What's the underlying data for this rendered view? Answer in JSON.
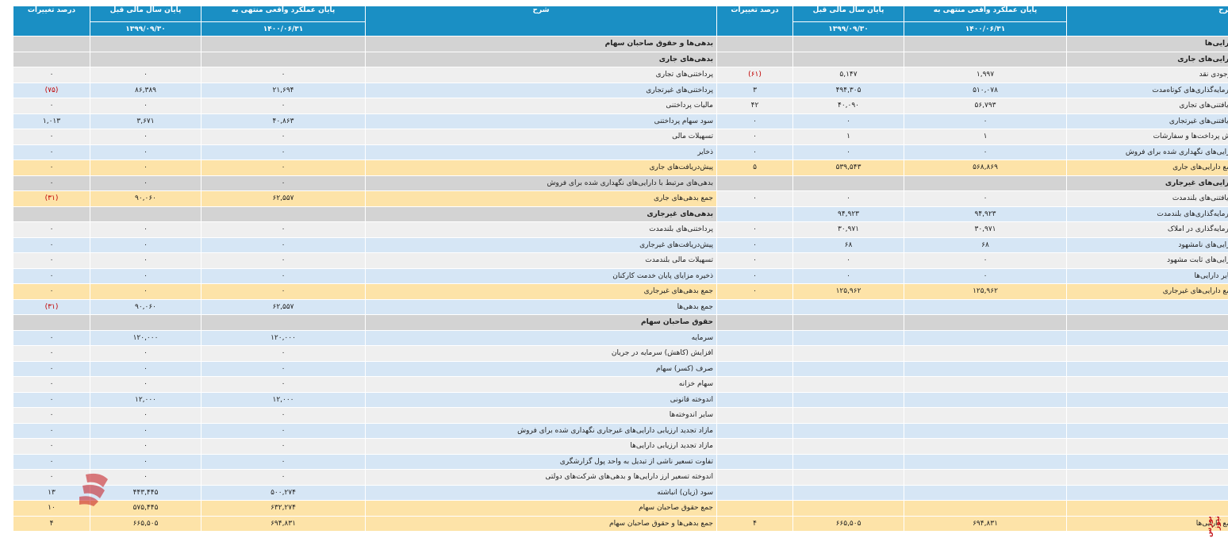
{
  "header": {
    "left": {
      "desc": "شرح",
      "actual": "پایان عملکرد واقعی منتهی به",
      "prev": "پایان سال مالی قبل",
      "change": "درصد تغییرات",
      "actual_date": "۱۴۰۰/۰۶/۳۱",
      "prev_date": "۱۳۹۹/۰۹/۳۰"
    },
    "right": {
      "desc": "شرح",
      "actual": "پایان عملکرد واقعی منتهی به",
      "prev": "پایان سال مالی قبل",
      "change": "درصد تغییرات",
      "actual_date": "۱۴۰۰/۰۶/۳۱",
      "prev_date": "۱۳۹۹/۰۹/۳۰"
    }
  },
  "rows": [
    {
      "type": "gray",
      "a": {
        "desc": "دارایی‌ها",
        "bold": true
      },
      "l": {
        "desc": "بدهی‌ها و حقوق صاحبان سهام",
        "bold": true
      }
    },
    {
      "type": "gray",
      "a": {
        "desc": "دارایی‌های جاری",
        "bold": true
      },
      "l": {
        "desc": "بدهی‌های جاری",
        "bold": true
      }
    },
    {
      "type": "light",
      "a": {
        "desc": "موجودی نقد",
        "actual": "۱,۹۹۷",
        "prev": "۵,۱۴۷",
        "change": "(۶۱)",
        "red": true
      },
      "l": {
        "desc": "پرداختنی‌های تجاری",
        "actual": "۰",
        "prev": "۰",
        "change": "۰"
      }
    },
    {
      "type": "blue",
      "a": {
        "desc": "سرمایه‌گذاری‌های کوتاه‌مدت",
        "actual": "۵۱۰,۰۷۸",
        "prev": "۴۹۴,۳۰۵",
        "change": "۳"
      },
      "l": {
        "desc": "پرداختنی‌های غیرتجاری",
        "actual": "۲۱,۶۹۴",
        "prev": "۸۶,۳۸۹",
        "change": "(۷۵)",
        "red": true
      }
    },
    {
      "type": "light",
      "a": {
        "desc": "دریافتنی‌های تجاری",
        "actual": "۵۶,۷۹۳",
        "prev": "۴۰,۰۹۰",
        "change": "۴۲"
      },
      "l": {
        "desc": "مالیات پرداختنی",
        "actual": "۰",
        "prev": "۰",
        "change": "۰"
      }
    },
    {
      "type": "blue",
      "a": {
        "desc": "دریافتنی‌های غیرتجاری",
        "actual": "۰",
        "prev": "۰",
        "change": "۰"
      },
      "l": {
        "desc": "سود سهام پرداختنی",
        "actual": "۴۰,۸۶۳",
        "prev": "۳,۶۷۱",
        "change": "۱,۰۱۳"
      }
    },
    {
      "type": "light",
      "a": {
        "desc": "پیش پرداخت‌ها و سفارشات",
        "actual": "۱",
        "prev": "۱",
        "change": "۰"
      },
      "l": {
        "desc": "تسهیلات مالی",
        "actual": "۰",
        "prev": "۰",
        "change": "۰"
      }
    },
    {
      "type": "blue",
      "a": {
        "desc": "دارایی‌های نگهداری شده برای فروش",
        "actual": "۰",
        "prev": "۰",
        "change": "۰"
      },
      "l": {
        "desc": "ذخایر",
        "actual": "۰",
        "prev": "۰",
        "change": "۰"
      }
    },
    {
      "type": "total",
      "a": {
        "desc": "جمع دارایی‌های جاری",
        "actual": "۵۶۸,۸۶۹",
        "prev": "۵۳۹,۵۴۳",
        "change": "۵"
      },
      "l": {
        "desc": "پیش‌دریافت‌های جاری",
        "actual": "۰",
        "prev": "۰",
        "change": "۰"
      }
    },
    {
      "type": "gray",
      "a": {
        "desc": "دارایی‌های غیرجاری",
        "bold": true
      },
      "l": {
        "desc": "بدهی‌های مرتبط با دارایی‌های نگهداری شده برای فروش",
        "actual": "۰",
        "prev": "۰",
        "change": "۰"
      }
    },
    {
      "type": "light",
      "a": {
        "desc": "دریافتنی‌های بلندمدت",
        "actual": "۰",
        "prev": "۰",
        "change": "۰"
      },
      "l": {
        "desc": "جمع بدهی‌های جاری",
        "actual": "۶۲,۵۵۷",
        "prev": "۹۰,۰۶۰",
        "change": "(۳۱)",
        "red": true,
        "total": true
      }
    },
    {
      "type": "blue",
      "a": {
        "desc": "سرمایه‌گذاری‌های بلندمدت",
        "actual": "۹۴,۹۲۳",
        "prev": "۹۴,۹۲۳",
        "change": ""
      },
      "l": {
        "desc": "بدهی‌های غیرجاری",
        "bold": true,
        "gray": true
      }
    },
    {
      "type": "light",
      "a": {
        "desc": "سرمایه‌گذاری در املاک",
        "actual": "۳۰,۹۷۱",
        "prev": "۳۰,۹۷۱",
        "change": "۰"
      },
      "l": {
        "desc": "پرداختنی‌های بلندمدت",
        "actual": "۰",
        "prev": "۰",
        "change": "۰"
      }
    },
    {
      "type": "blue",
      "a": {
        "desc": "دارایی‌های نامشهود",
        "actual": "۶۸",
        "prev": "۶۸",
        "change": "۰"
      },
      "l": {
        "desc": "پیش‌دریافت‌های غیرجاری",
        "actual": "۰",
        "prev": "۰",
        "change": "۰"
      }
    },
    {
      "type": "light",
      "a": {
        "desc": "دارایی‌های ثابت مشهود",
        "actual": "۰",
        "prev": "۰",
        "change": "۰"
      },
      "l": {
        "desc": "تسهیلات مالی بلندمدت",
        "actual": "۰",
        "prev": "۰",
        "change": "۰"
      }
    },
    {
      "type": "blue",
      "a": {
        "desc": "سایر دارایی‌ها",
        "actual": "۰",
        "prev": "۰",
        "change": "۰"
      },
      "l": {
        "desc": "ذخیره مزایای پایان خدمت کارکنان",
        "actual": "۰",
        "prev": "۰",
        "change": "۰"
      }
    },
    {
      "type": "total",
      "a": {
        "desc": "جمع دارایی‌های غیرجاری",
        "actual": "۱۲۵,۹۶۲",
        "prev": "۱۲۵,۹۶۲",
        "change": "۰"
      },
      "l": {
        "desc": "جمع بدهی‌های غیرجاری",
        "actual": "۰",
        "prev": "۰",
        "change": "۰"
      }
    },
    {
      "type": "blue",
      "a": {
        "desc": ""
      },
      "l": {
        "desc": "جمع بدهی‌ها",
        "actual": "۶۲,۵۵۷",
        "prev": "۹۰,۰۶۰",
        "change": "(۳۱)",
        "red": true
      }
    },
    {
      "type": "gray",
      "a": {
        "desc": ""
      },
      "l": {
        "desc": "حقوق صاحبان سهام",
        "bold": true
      }
    },
    {
      "type": "blue",
      "a": {
        "desc": ""
      },
      "l": {
        "desc": "سرمایه",
        "actual": "۱۲۰,۰۰۰",
        "prev": "۱۲۰,۰۰۰",
        "change": "۰"
      }
    },
    {
      "type": "light",
      "a": {
        "desc": ""
      },
      "l": {
        "desc": "افزایش (کاهش) سرمایه در جریان",
        "actual": "۰",
        "prev": "۰",
        "change": "۰"
      }
    },
    {
      "type": "blue",
      "a": {
        "desc": ""
      },
      "l": {
        "desc": "صرف (کسر) سهام",
        "actual": "۰",
        "prev": "۰",
        "change": "۰"
      }
    },
    {
      "type": "light",
      "a": {
        "desc": ""
      },
      "l": {
        "desc": "سهام خزانه",
        "actual": "۰",
        "prev": "۰",
        "change": "۰"
      }
    },
    {
      "type": "blue",
      "a": {
        "desc": ""
      },
      "l": {
        "desc": "اندوخته قانونی",
        "actual": "۱۲,۰۰۰",
        "prev": "۱۲,۰۰۰",
        "change": "۰"
      }
    },
    {
      "type": "light",
      "a": {
        "desc": ""
      },
      "l": {
        "desc": "سایر اندوخته‌ها",
        "actual": "۰",
        "prev": "۰",
        "change": "۰"
      }
    },
    {
      "type": "blue",
      "a": {
        "desc": ""
      },
      "l": {
        "desc": "مازاد تجدید ارزیابی دارایی‌های غیرجاری نگهداری شده برای فروش",
        "actual": "۰",
        "prev": "۰",
        "change": "۰"
      }
    },
    {
      "type": "light",
      "a": {
        "desc": ""
      },
      "l": {
        "desc": "مازاد تجدید ارزیابی دارایی‌ها",
        "actual": "۰",
        "prev": "۰",
        "change": "۰"
      }
    },
    {
      "type": "blue",
      "a": {
        "desc": ""
      },
      "l": {
        "desc": "تفاوت تسعیر ناشی از تبدیل به واحد پول گزارشگری",
        "actual": "۰",
        "prev": "۰",
        "change": "۰"
      }
    },
    {
      "type": "light",
      "a": {
        "desc": ""
      },
      "l": {
        "desc": "اندوخته تسعیر ارز دارایی‌ها و بدهی‌های شرکت‌های دولتی",
        "actual": "۰",
        "prev": "۰",
        "change": "۰"
      }
    },
    {
      "type": "blue",
      "a": {
        "desc": ""
      },
      "l": {
        "desc": "سود (زیان) انباشته",
        "actual": "۵۰۰,۲۷۴",
        "prev": "۴۴۳,۴۴۵",
        "change": "۱۳"
      }
    },
    {
      "type": "total",
      "a": {
        "desc": ""
      },
      "l": {
        "desc": "جمع حقوق صاحبان سهام",
        "actual": "۶۳۲,۲۷۴",
        "prev": "۵۷۵,۴۴۵",
        "change": "۱۰"
      }
    },
    {
      "type": "total",
      "a": {
        "desc": "جمع دارایی‌ها",
        "actual": "۶۹۴,۸۳۱",
        "prev": "۶۶۵,۵۰۵",
        "change": "۴"
      },
      "l": {
        "desc": "جمع بدهی‌ها و حقوق صاحبان سهام",
        "actual": "۶۹۴,۸۳۱",
        "prev": "۶۶۵,۵۰۵",
        "change": "۴"
      }
    }
  ],
  "brand": {
    "label": "بورس نیوز",
    "color": "#c4161c"
  },
  "colors": {
    "header": "#1a8fc4",
    "total": "#fde3a8",
    "blue": "#d6e6f5",
    "gray": "#d3d3d3",
    "light": "#efefef",
    "negative": "#c00000"
  }
}
